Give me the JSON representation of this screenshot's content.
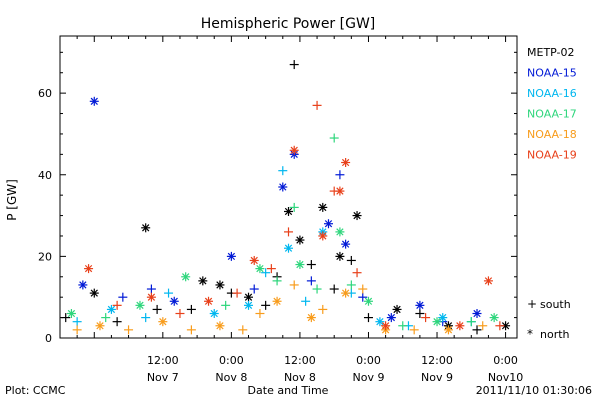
{
  "chart_data": {
    "type": "scatter",
    "title": "Hemispheric Power [GW]",
    "ylabel": "P [GW]",
    "xlabel": "Date and Time",
    "ylim": [
      0,
      74
    ],
    "yticks": [
      0,
      20,
      40,
      60
    ],
    "xlim": [
      "2011-11-06 18:00",
      "2011-11-10 02:00"
    ],
    "xticks": [
      {
        "t": "2011-11-07 12:00",
        "time": "12:00",
        "date": "Nov 7"
      },
      {
        "t": "2011-11-08 00:00",
        "time": "0:00",
        "date": "Nov 8"
      },
      {
        "t": "2011-11-08 12:00",
        "time": "12:00",
        "date": "Nov 8"
      },
      {
        "t": "2011-11-09 00:00",
        "time": "0:00",
        "date": "Nov 9"
      },
      {
        "t": "2011-11-09 12:00",
        "time": "12:00",
        "date": "Nov 9"
      },
      {
        "t": "2011-11-10 00:00",
        "time": "0:00",
        "date": "Nov10"
      }
    ],
    "legend_position": "right",
    "marker_legend": [
      {
        "symbol": "+",
        "label": "south"
      },
      {
        "symbol": "*",
        "label": "north"
      }
    ],
    "series": [
      {
        "name": "METP-02",
        "color": "#000000",
        "points": [
          [
            "2011-11-06 19:00",
            5,
            "south"
          ],
          [
            "2011-11-07 00:00",
            11,
            "north"
          ],
          [
            "2011-11-07 04:00",
            4,
            "south"
          ],
          [
            "2011-11-07 09:00",
            27,
            "north"
          ],
          [
            "2011-11-07 11:00",
            7,
            "south"
          ],
          [
            "2011-11-07 17:00",
            7,
            "south"
          ],
          [
            "2011-11-07 19:00",
            14,
            "north"
          ],
          [
            "2011-11-07 22:00",
            13,
            "north"
          ],
          [
            "2011-11-08 00:00",
            11,
            "south"
          ],
          [
            "2011-11-08 03:00",
            10,
            "north"
          ],
          [
            "2011-11-08 06:00",
            8,
            "south"
          ],
          [
            "2011-11-08 08:00",
            15,
            "south"
          ],
          [
            "2011-11-08 10:00",
            31,
            "north"
          ],
          [
            "2011-11-08 11:00",
            67,
            "south"
          ],
          [
            "2011-11-08 12:00",
            24,
            "north"
          ],
          [
            "2011-11-08 14:00",
            18,
            "south"
          ],
          [
            "2011-11-08 16:00",
            32,
            "north"
          ],
          [
            "2011-11-08 18:00",
            12,
            "south"
          ],
          [
            "2011-11-08 19:00",
            20,
            "north"
          ],
          [
            "2011-11-08 21:00",
            19,
            "south"
          ],
          [
            "2011-11-08 22:00",
            30,
            "north"
          ],
          [
            "2011-11-09 00:00",
            5,
            "south"
          ],
          [
            "2011-11-09 05:00",
            7,
            "north"
          ],
          [
            "2011-11-09 09:00",
            6,
            "south"
          ],
          [
            "2011-11-09 14:00",
            3,
            "north"
          ],
          [
            "2011-11-09 19:00",
            2,
            "south"
          ],
          [
            "2011-11-10 00:00",
            3,
            "north"
          ]
        ]
      },
      {
        "name": "NOAA-15",
        "color": "#0019d6",
        "points": [
          [
            "2011-11-06 22:00",
            13,
            "north"
          ],
          [
            "2011-11-07 00:00",
            58,
            "north"
          ],
          [
            "2011-11-07 05:00",
            10,
            "south"
          ],
          [
            "2011-11-07 10:00",
            12,
            "south"
          ],
          [
            "2011-11-07 14:00",
            9,
            "north"
          ],
          [
            "2011-11-08 00:00",
            20,
            "north"
          ],
          [
            "2011-11-08 04:00",
            12,
            "south"
          ],
          [
            "2011-11-08 09:00",
            37,
            "north"
          ],
          [
            "2011-11-08 11:00",
            45,
            "north"
          ],
          [
            "2011-11-08 14:00",
            14,
            "south"
          ],
          [
            "2011-11-08 17:00",
            28,
            "north"
          ],
          [
            "2011-11-08 19:00",
            40,
            "south"
          ],
          [
            "2011-11-08 20:00",
            23,
            "north"
          ],
          [
            "2011-11-08 23:00",
            10,
            "south"
          ],
          [
            "2011-11-09 04:00",
            5,
            "north"
          ],
          [
            "2011-11-09 09:00",
            8,
            "north"
          ],
          [
            "2011-11-09 13:00",
            4,
            "south"
          ],
          [
            "2011-11-09 19:00",
            6,
            "north"
          ]
        ]
      },
      {
        "name": "NOAA-16",
        "color": "#00b7ef",
        "points": [
          [
            "2011-11-06 21:00",
            4,
            "south"
          ],
          [
            "2011-11-07 03:00",
            7,
            "north"
          ],
          [
            "2011-11-07 09:00",
            5,
            "south"
          ],
          [
            "2011-11-07 13:00",
            11,
            "south"
          ],
          [
            "2011-11-07 21:00",
            6,
            "north"
          ],
          [
            "2011-11-08 03:00",
            8,
            "north"
          ],
          [
            "2011-11-08 06:00",
            16,
            "south"
          ],
          [
            "2011-11-08 09:00",
            41,
            "south"
          ],
          [
            "2011-11-08 10:00",
            22,
            "north"
          ],
          [
            "2011-11-08 13:00",
            9,
            "south"
          ],
          [
            "2011-11-08 16:00",
            26,
            "north"
          ],
          [
            "2011-11-08 21:00",
            11,
            "south"
          ],
          [
            "2011-11-09 02:00",
            4,
            "north"
          ],
          [
            "2011-11-09 07:00",
            3,
            "south"
          ],
          [
            "2011-11-09 13:00",
            5,
            "north"
          ],
          [
            "2011-11-09 18:00",
            4,
            "south"
          ]
        ]
      },
      {
        "name": "NOAA-17",
        "color": "#2ed67c",
        "points": [
          [
            "2011-11-06 20:00",
            6,
            "north"
          ],
          [
            "2011-11-07 02:00",
            5,
            "south"
          ],
          [
            "2011-11-07 08:00",
            8,
            "north"
          ],
          [
            "2011-11-07 16:00",
            15,
            "north"
          ],
          [
            "2011-11-07 23:00",
            8,
            "south"
          ],
          [
            "2011-11-08 05:00",
            17,
            "north"
          ],
          [
            "2011-11-08 08:00",
            14,
            "south"
          ],
          [
            "2011-11-08 11:00",
            32,
            "south"
          ],
          [
            "2011-11-08 12:00",
            18,
            "north"
          ],
          [
            "2011-11-08 15:00",
            12,
            "south"
          ],
          [
            "2011-11-08 18:00",
            49,
            "south"
          ],
          [
            "2011-11-08 19:00",
            26,
            "north"
          ],
          [
            "2011-11-08 21:00",
            13,
            "south"
          ],
          [
            "2011-11-09 00:00",
            9,
            "north"
          ],
          [
            "2011-11-09 06:00",
            3,
            "south"
          ],
          [
            "2011-11-09 12:00",
            4,
            "north"
          ],
          [
            "2011-11-09 18:00",
            4,
            "south"
          ],
          [
            "2011-11-09 22:00",
            5,
            "north"
          ]
        ]
      },
      {
        "name": "NOAA-18",
        "color": "#f89c1c",
        "points": [
          [
            "2011-11-06 21:00",
            2,
            "south"
          ],
          [
            "2011-11-07 01:00",
            3,
            "north"
          ],
          [
            "2011-11-07 06:00",
            2,
            "south"
          ],
          [
            "2011-11-07 12:00",
            4,
            "north"
          ],
          [
            "2011-11-07 17:00",
            2,
            "south"
          ],
          [
            "2011-11-07 22:00",
            3,
            "north"
          ],
          [
            "2011-11-08 02:00",
            2,
            "south"
          ],
          [
            "2011-11-08 05:00",
            6,
            "south"
          ],
          [
            "2011-11-08 08:00",
            9,
            "north"
          ],
          [
            "2011-11-08 11:00",
            13,
            "south"
          ],
          [
            "2011-11-08 14:00",
            5,
            "north"
          ],
          [
            "2011-11-08 16:00",
            7,
            "south"
          ],
          [
            "2011-11-08 20:00",
            11,
            "north"
          ],
          [
            "2011-11-08 23:00",
            12,
            "south"
          ],
          [
            "2011-11-09 03:00",
            2,
            "north"
          ],
          [
            "2011-11-09 08:00",
            2,
            "south"
          ],
          [
            "2011-11-09 14:00",
            2,
            "north"
          ],
          [
            "2011-11-09 20:00",
            3,
            "south"
          ]
        ]
      },
      {
        "name": "NOAA-19",
        "color": "#e8401a",
        "points": [
          [
            "2011-11-06 23:00",
            17,
            "north"
          ],
          [
            "2011-11-07 04:00",
            8,
            "south"
          ],
          [
            "2011-11-07 10:00",
            10,
            "north"
          ],
          [
            "2011-11-07 15:00",
            6,
            "south"
          ],
          [
            "2011-11-07 20:00",
            9,
            "north"
          ],
          [
            "2011-11-08 01:00",
            11,
            "south"
          ],
          [
            "2011-11-08 04:00",
            19,
            "north"
          ],
          [
            "2011-11-08 07:00",
            17,
            "south"
          ],
          [
            "2011-11-08 10:00",
            26,
            "south"
          ],
          [
            "2011-11-08 11:00",
            46,
            "north"
          ],
          [
            "2011-11-08 15:00",
            57,
            "south"
          ],
          [
            "2011-11-08 16:00",
            25,
            "north"
          ],
          [
            "2011-11-08 18:00",
            36,
            "south"
          ],
          [
            "2011-11-08 19:00",
            36,
            "north"
          ],
          [
            "2011-11-08 20:00",
            43,
            "north"
          ],
          [
            "2011-11-08 22:00",
            16,
            "south"
          ],
          [
            "2011-11-09 03:00",
            3,
            "north"
          ],
          [
            "2011-11-09 10:00",
            5,
            "south"
          ],
          [
            "2011-11-09 16:00",
            3,
            "north"
          ],
          [
            "2011-11-09 21:00",
            14,
            "north"
          ],
          [
            "2011-11-09 23:00",
            3,
            "south"
          ]
        ]
      }
    ]
  },
  "footer": {
    "left": "Plot: CCMC",
    "right": "2011/11/10 01:30:06"
  }
}
